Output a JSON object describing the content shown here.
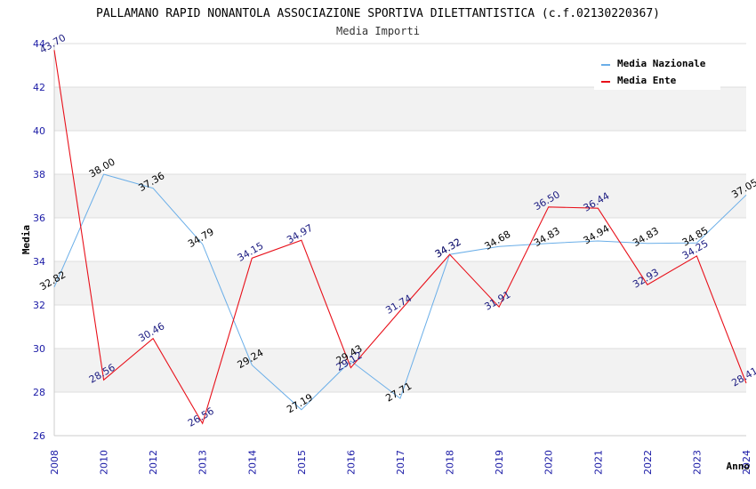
{
  "chart_data": {
    "type": "line",
    "title": "PALLAMANO RAPID NONANTOLA ASSOCIAZIONE SPORTIVA DILETTANTISTICA (c.f.02130220367)",
    "subtitle": "Media Importi",
    "xlabel": "Anno",
    "ylabel": "Media",
    "ylim": [
      26,
      44
    ],
    "yticks": [
      "26",
      "28",
      "30",
      "32",
      "34",
      "36",
      "38",
      "40",
      "42",
      "44"
    ],
    "categories": [
      "2008",
      "2010",
      "2012",
      "2013",
      "2014",
      "2015",
      "2016",
      "2017",
      "2018",
      "2019",
      "2020",
      "2021",
      "2022",
      "2023",
      "2024"
    ],
    "grid": true,
    "legend_position": "top-right",
    "series": [
      {
        "name": "Media Nazionale",
        "color": "#6aaee8",
        "values": [
          32.82,
          38.0,
          37.36,
          34.79,
          29.24,
          27.19,
          29.43,
          27.71,
          34.32,
          34.68,
          34.83,
          34.94,
          34.83,
          34.85,
          37.05
        ],
        "labels": [
          "32.82",
          "38.00",
          "37.36",
          "34.79",
          "29.24",
          "27.19",
          "29.43",
          "27.71",
          "34.32",
          "34.68",
          "34.83",
          "34.94",
          "34.83",
          "34.85",
          "37.05"
        ]
      },
      {
        "name": "Media Ente",
        "color": "#e8101a",
        "values": [
          43.7,
          28.56,
          30.46,
          26.56,
          34.15,
          34.97,
          29.12,
          31.74,
          34.32,
          31.91,
          36.5,
          36.44,
          32.93,
          34.25,
          28.41
        ],
        "labels": [
          "43.70",
          "28.56",
          "30.46",
          "26.56",
          "34.15",
          "34.97",
          "29.12",
          "31.74",
          "34.32",
          "31.91",
          "36.50",
          "36.44",
          "32.93",
          "34.25",
          "28.41"
        ]
      }
    ]
  }
}
